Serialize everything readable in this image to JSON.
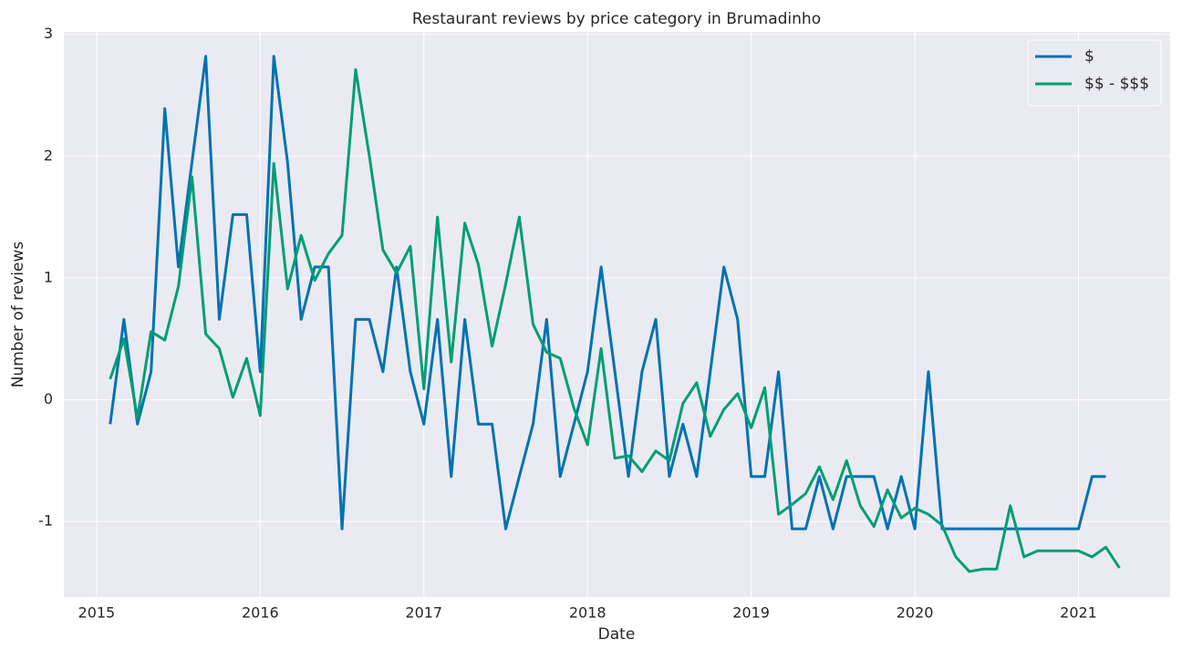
{
  "chart_data": {
    "type": "line",
    "title": "Restaurant reviews by price category in Brumadinho",
    "x_label": "Date",
    "y_label": "Number of reviews",
    "x": [
      2015.083,
      2015.167,
      2015.25,
      2015.333,
      2015.417,
      2015.5,
      2015.583,
      2015.667,
      2015.75,
      2015.833,
      2015.917,
      2016,
      2016.083,
      2016.167,
      2016.25,
      2016.333,
      2016.417,
      2016.5,
      2016.583,
      2016.667,
      2016.75,
      2016.833,
      2016.917,
      2017,
      2017.083,
      2017.167,
      2017.25,
      2017.333,
      2017.417,
      2017.5,
      2017.583,
      2017.667,
      2017.75,
      2017.833,
      2017.917,
      2018,
      2018.083,
      2018.167,
      2018.25,
      2018.333,
      2018.417,
      2018.5,
      2018.583,
      2018.667,
      2018.75,
      2018.833,
      2018.917,
      2019,
      2019.083,
      2019.167,
      2019.25,
      2019.333,
      2019.417,
      2019.5,
      2019.583,
      2019.667,
      2019.75,
      2019.833,
      2019.917,
      2020,
      2020.083,
      2020.167,
      2020.25,
      2020.333,
      2020.417,
      2020.5,
      2020.583,
      2020.667,
      2020.75,
      2020.833,
      2020.917,
      2021,
      2021.083,
      2021.167,
      2021.25
    ],
    "series": [
      {
        "name": "$",
        "color": "#0072b2",
        "values": [
          -0.2,
          0.66,
          -0.2,
          0.23,
          2.39,
          1.09,
          1.95,
          2.82,
          0.66,
          1.52,
          1.52,
          0.23,
          2.82,
          1.95,
          0.66,
          1.09,
          1.09,
          -1.06,
          0.66,
          0.66,
          0.23,
          1.09,
          0.23,
          -0.2,
          0.66,
          -0.63,
          0.66,
          -0.2,
          -0.2,
          -1.06,
          -0.63,
          -0.2,
          0.66,
          -0.63,
          -0.2,
          0.23,
          1.09,
          0.23,
          -0.63,
          0.23,
          0.66,
          -0.63,
          -0.2,
          -0.63,
          0.23,
          1.09,
          0.66,
          -0.63,
          -0.63,
          0.23,
          -1.06,
          -1.06,
          -0.63,
          -1.06,
          -0.63,
          -0.63,
          -0.63,
          -1.06,
          -0.63,
          -1.06,
          0.23,
          -1.06,
          -1.06,
          -1.06,
          -1.06,
          -1.06,
          -1.06,
          -1.06,
          -1.06,
          -1.06,
          -1.06,
          -1.06,
          -0.63,
          -0.63,
          null
        ]
      },
      {
        "name": "$$ - $$$",
        "color": "#009e73",
        "values": [
          0.17,
          0.5,
          -0.15,
          0.56,
          0.49,
          0.93,
          1.83,
          0.54,
          0.42,
          0.02,
          0.34,
          -0.13,
          1.94,
          0.91,
          1.35,
          0.98,
          1.2,
          1.35,
          2.71,
          2.0,
          1.23,
          1.04,
          1.26,
          0.09,
          1.5,
          0.31,
          1.45,
          1.11,
          0.44,
          0.95,
          1.5,
          0.62,
          0.39,
          0.34,
          -0.07,
          -0.37,
          0.42,
          -0.48,
          -0.46,
          -0.59,
          -0.42,
          -0.5,
          -0.03,
          0.14,
          -0.3,
          -0.08,
          0.05,
          -0.23,
          0.1,
          -0.94,
          -0.86,
          -0.77,
          -0.55,
          -0.82,
          -0.5,
          -0.87,
          -1.04,
          -0.74,
          -0.97,
          -0.89,
          -0.94,
          -1.03,
          -1.29,
          -1.41,
          -1.39,
          -1.39,
          -0.87,
          -1.29,
          -1.24,
          -1.24,
          -1.24,
          -1.24,
          -1.29,
          -1.21,
          -1.38
        ]
      }
    ],
    "xlim": [
      2014.8,
      2021.56
    ],
    "ylim": [
      -1.62,
      3.02
    ],
    "xticks": [
      2015,
      2016,
      2017,
      2018,
      2019,
      2020,
      2021
    ],
    "yticks": [
      -1,
      0,
      1,
      2,
      3
    ],
    "grid": true,
    "legend": "upper right"
  }
}
